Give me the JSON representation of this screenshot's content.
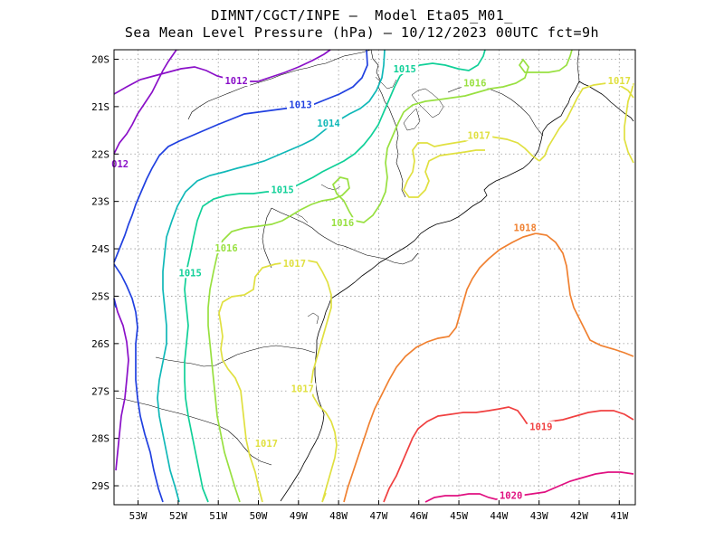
{
  "header": {
    "title_line1": "DIMNT/CGCT/INPE –  Model Eta05_M01_",
    "title_line2": "Sea Mean Level Pressure (hPa) – 10/12/2023 00UTC fct=9h"
  },
  "map": {
    "lon_range": [
      -53.6,
      -40.6
    ],
    "lat_range": [
      -29.4,
      -19.8
    ],
    "lon_ticks": [
      {
        "value": -53,
        "label": "53W"
      },
      {
        "value": -52,
        "label": "52W"
      },
      {
        "value": -51,
        "label": "51W"
      },
      {
        "value": -50,
        "label": "50W"
      },
      {
        "value": -49,
        "label": "49W"
      },
      {
        "value": -48,
        "label": "48W"
      },
      {
        "value": -47,
        "label": "47W"
      },
      {
        "value": -46,
        "label": "46W"
      },
      {
        "value": -45,
        "label": "45W"
      },
      {
        "value": -44,
        "label": "44W"
      },
      {
        "value": -43,
        "label": "43W"
      },
      {
        "value": -42,
        "label": "42W"
      },
      {
        "value": -41,
        "label": "41W"
      }
    ],
    "lat_ticks": [
      {
        "value": -20,
        "label": "20S"
      },
      {
        "value": -21,
        "label": "21S"
      },
      {
        "value": -22,
        "label": "22S"
      },
      {
        "value": -23,
        "label": "23S"
      },
      {
        "value": -24,
        "label": "24S"
      },
      {
        "value": -25,
        "label": "25S"
      },
      {
        "value": -26,
        "label": "26S"
      },
      {
        "value": -27,
        "label": "27S"
      },
      {
        "value": -28,
        "label": "28S"
      },
      {
        "value": -29,
        "label": "29S"
      }
    ],
    "gridlines": true,
    "colors": {
      "1012": "#8a10c8",
      "1013": "#2040e0",
      "1014": "#10b8b8",
      "1015": "#10d098",
      "1016": "#98e040",
      "1017": "#e0e040",
      "1018": "#f08030",
      "1019": "#f04040",
      "1020": "#e01080",
      "coast": "#000000"
    },
    "contour_labels": [
      {
        "text": "1012",
        "lon": -50.55,
        "lat": -20.45,
        "level": "1012"
      },
      {
        "text": "012",
        "lon": -53.45,
        "lat": -22.2,
        "level": "1012"
      },
      {
        "text": "1013",
        "lon": -48.95,
        "lat": -20.95,
        "level": "1013"
      },
      {
        "text": "1014",
        "lon": -48.25,
        "lat": -21.35,
        "level": "1014"
      },
      {
        "text": "1015",
        "lon": -46.35,
        "lat": -20.2,
        "level": "1015"
      },
      {
        "text": "1015",
        "lon": -49.4,
        "lat": -22.75,
        "level": "1015"
      },
      {
        "text": "1015",
        "lon": -51.7,
        "lat": -24.5,
        "level": "1015"
      },
      {
        "text": "1016",
        "lon": -44.6,
        "lat": -20.5,
        "level": "1016"
      },
      {
        "text": "1016",
        "lon": -47.9,
        "lat": -23.45,
        "level": "1016"
      },
      {
        "text": "1016",
        "lon": -50.8,
        "lat": -23.98,
        "level": "1016"
      },
      {
        "text": "1017",
        "lon": -41.0,
        "lat": -20.45,
        "level": "1017"
      },
      {
        "text": "1017",
        "lon": -44.5,
        "lat": -21.6,
        "level": "1017"
      },
      {
        "text": "1017",
        "lon": -49.1,
        "lat": -24.3,
        "level": "1017"
      },
      {
        "text": "1017",
        "lon": -48.9,
        "lat": -26.95,
        "level": "1017"
      },
      {
        "text": "1017",
        "lon": -49.8,
        "lat": -28.1,
        "level": "1017"
      },
      {
        "text": "1018",
        "lon": -43.35,
        "lat": -23.55,
        "level": "1018"
      },
      {
        "text": "1019",
        "lon": -42.95,
        "lat": -27.75,
        "level": "1019"
      },
      {
        "text": "1020",
        "lon": -43.7,
        "lat": -29.2,
        "level": "1020"
      }
    ]
  }
}
